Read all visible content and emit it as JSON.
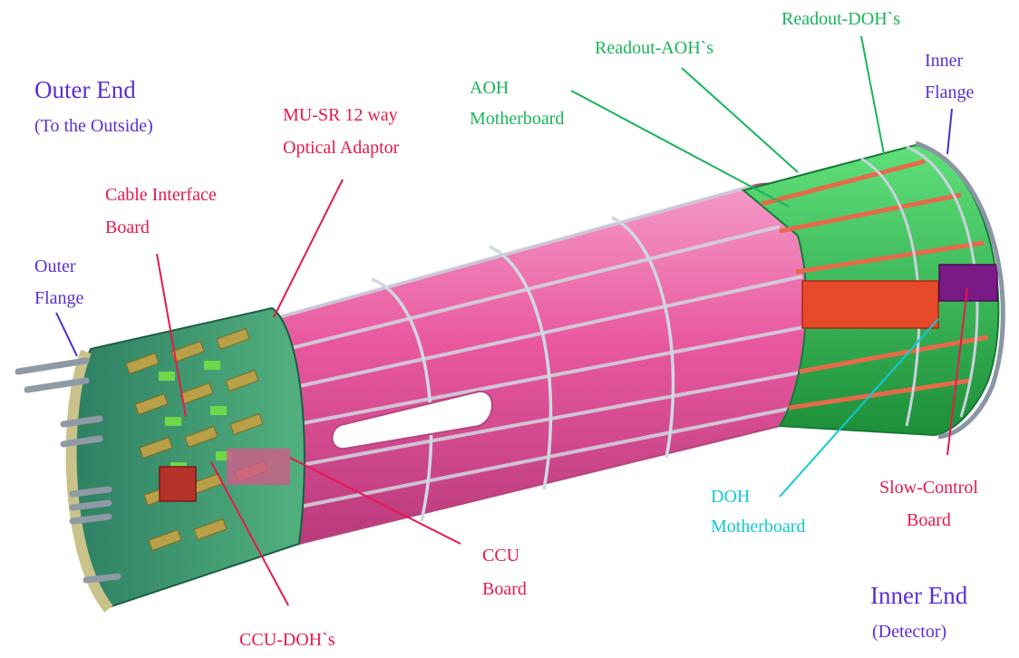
{
  "title": "",
  "labels": {
    "outer_end": "Outer End",
    "outer_end_sub": "(To the Outside)",
    "mu_sr_line1": "MU-SR 12 way",
    "mu_sr_line2": "Optical Adaptor",
    "cable_if_line1": "Cable Interface",
    "cable_if_line2": "Board",
    "outer_flange_line1": "Outer",
    "outer_flange_line2": "Flange",
    "aoh_mb_line1": "AOH",
    "aoh_mb_line2": "Motherboard",
    "readout_aoh": "Readout-AOH`s",
    "readout_doh": "Readout-DOH`s",
    "inner_flange_line1": "Inner",
    "inner_flange_line2": "Flange",
    "doh_mb_line1": "DOH",
    "doh_mb_line2": "Motherboard",
    "slow_control_line1": "Slow-Control",
    "slow_control_line2": "Board",
    "ccu_board_line1": "CCU",
    "ccu_board_line2": "Board",
    "ccu_doh": "CCU-DOH`s",
    "inner_end": "Inner End",
    "inner_end_sub": "(Detector)"
  },
  "colors": {
    "cylinder_pink": "#e8579e",
    "electronics_green": "#2fc04a",
    "board_red": "#e64a2a",
    "slow_control_purple": "#7a1a86",
    "frame_steel": "#9aa7b4",
    "label_purple": "#5a2fd6",
    "label_red": "#e8184a",
    "label_green": "#19b55a",
    "label_cyan": "#12c9d6"
  }
}
